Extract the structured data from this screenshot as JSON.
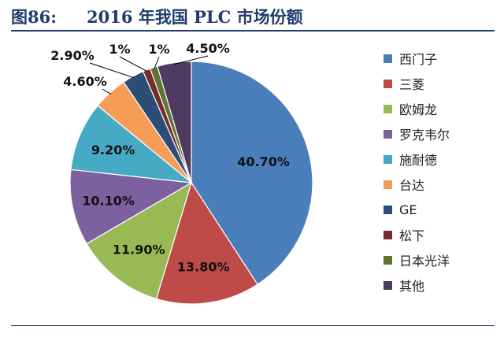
{
  "header": {
    "figure_label": "图86:",
    "title": "2016 年我国 PLC 市场份额"
  },
  "chart_data": {
    "type": "pie",
    "categories": [
      "西门子",
      "三菱",
      "欧姆龙",
      "罗克韦尔",
      "施耐德",
      "台达",
      "GE",
      "松下",
      "日本光洋",
      "其他"
    ],
    "values": [
      40.7,
      13.8,
      11.9,
      10.1,
      9.2,
      4.6,
      2.9,
      1,
      1,
      4.5
    ],
    "data_labels": [
      "40.70%",
      "13.80%",
      "11.90%",
      "10.10%",
      "9.20%",
      "4.60%",
      "2.90%",
      "1%",
      "1%",
      "4.50%"
    ],
    "colors": [
      "#4a7ebb",
      "#be4b48",
      "#98b954",
      "#7d60a0",
      "#46aac4",
      "#f59d56",
      "#2c4d75",
      "#772c2a",
      "#5f7530",
      "#4d3b62"
    ],
    "legend_position": "right",
    "title": ""
  }
}
